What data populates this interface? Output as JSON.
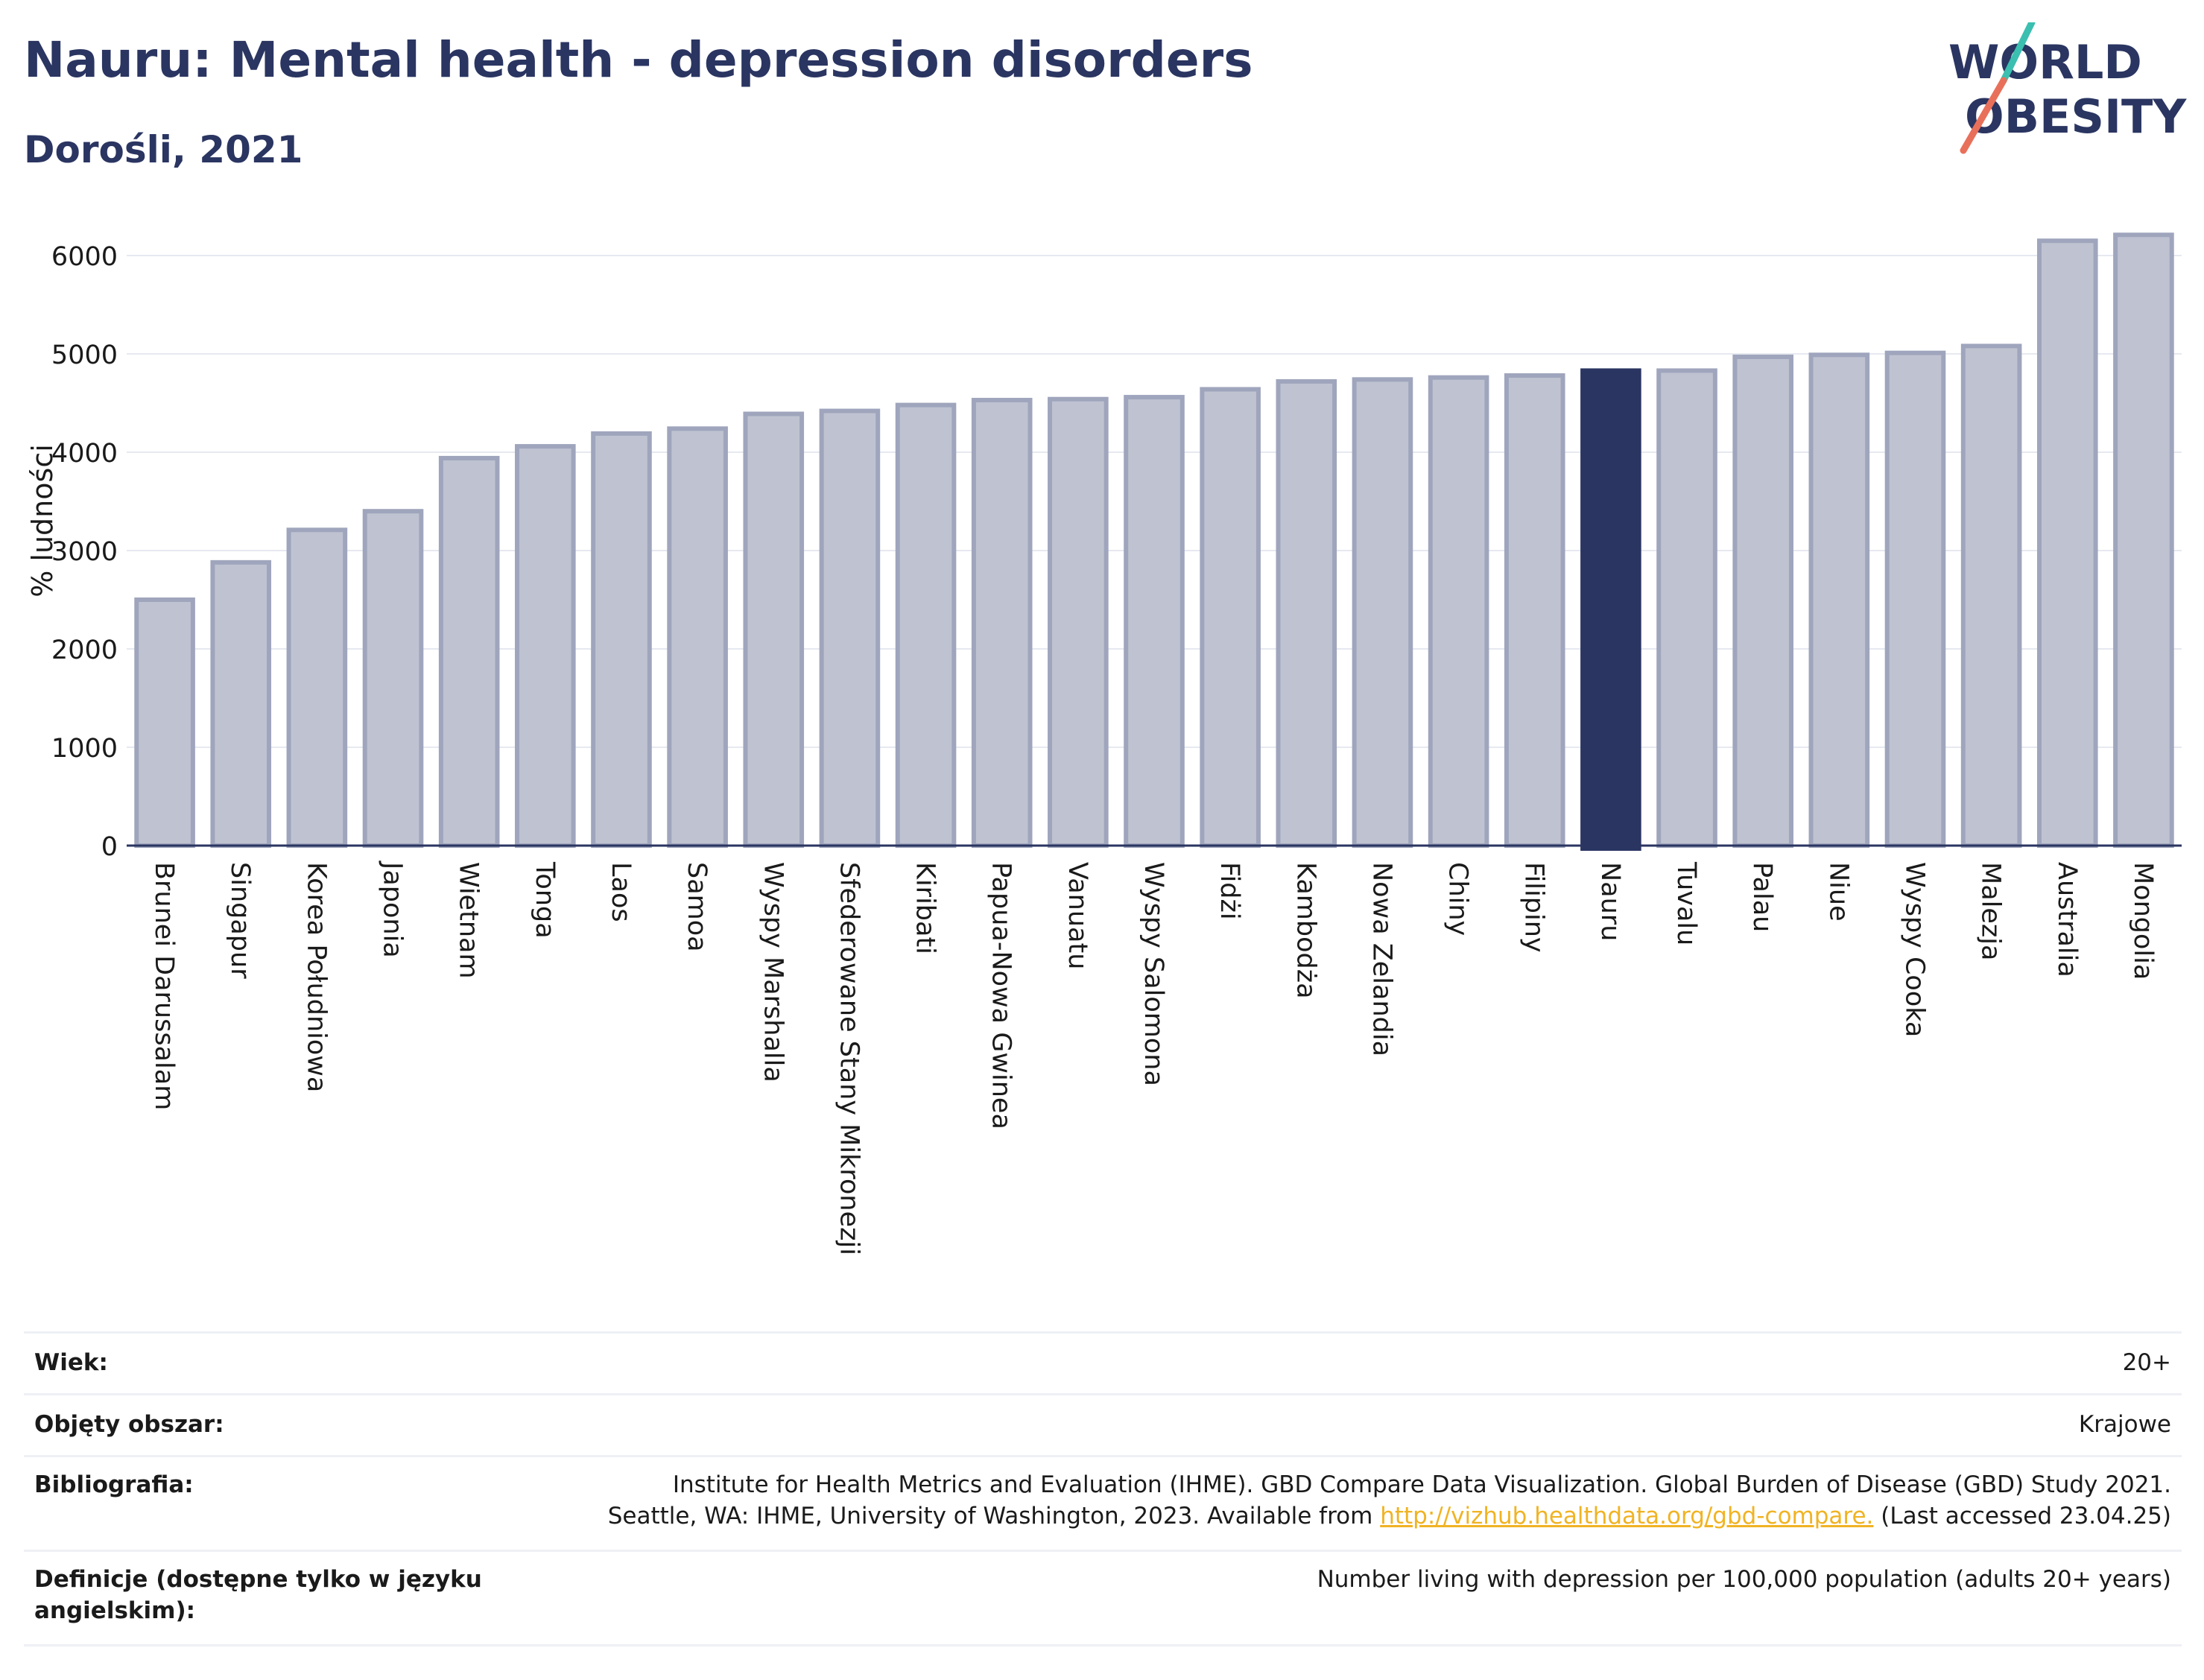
{
  "header": {
    "title": "Nauru: Mental health - depression disorders",
    "subtitle": "Dorośli, 2021"
  },
  "logo": {
    "line1": "WORLD",
    "line2": "OBESITY"
  },
  "colors": {
    "bar": "#bfc3d1",
    "bar_stroke": "#9fa5bc",
    "highlight": "#2a3561",
    "grid": "#e6e9f0",
    "text": "#2a3561"
  },
  "chart_data": {
    "type": "bar",
    "ylabel": "% ludności",
    "ylim": [
      0,
      6500
    ],
    "yticks": [
      0,
      1000,
      2000,
      3000,
      4000,
      5000,
      6000
    ],
    "highlight": "Nauru",
    "categories": [
      "Brunei Darussalam",
      "Singapur",
      "Korea Południowa",
      "Japonia",
      "Wietnam",
      "Tonga",
      "Laos",
      "Samoa",
      "Wyspy Marshalla",
      "Sfederowane Stany Mikronezji",
      "Kiribati",
      "Papua-Nowa Gwinea",
      "Vanuatu",
      "Wyspy Salomona",
      "Fidżi",
      "Kambodża",
      "Nowa Zelandia",
      "Chiny",
      "Filipiny",
      "Nauru",
      "Tuvalu",
      "Palau",
      "Niue",
      "Wyspy Cooka",
      "Malezja",
      "Australia",
      "Mongolia"
    ],
    "values": [
      2500,
      2880,
      3210,
      3400,
      3940,
      4060,
      4190,
      4240,
      4390,
      4420,
      4480,
      4530,
      4540,
      4560,
      4640,
      4720,
      4740,
      4760,
      4780,
      4830,
      4830,
      4970,
      4990,
      5010,
      5080,
      6150,
      6210
    ]
  },
  "meta": {
    "age_label": "Wiek:",
    "age_value": "20+",
    "area_label": "Objęty obszar:",
    "area_value": "Krajowe",
    "bib_label": "Bibliografia:",
    "bib_line1": "Institute for Health Metrics and Evaluation (IHME). GBD Compare Data Visualization. Global Burden of Disease (GBD) Study 2021.",
    "bib_line2_pre": "Seattle, WA: IHME, University of Washington, 2023. Available from ",
    "bib_link": "http://vizhub.healthdata.org/gbd-compare.",
    "bib_line2_post": " (Last accessed 23.04.25)",
    "def_label_line1": "Definicje (dostępne tylko w języku",
    "def_label_line2": "angielskim):",
    "def_value": "Number living with depression per 100,000 population (adults 20+ years)"
  }
}
